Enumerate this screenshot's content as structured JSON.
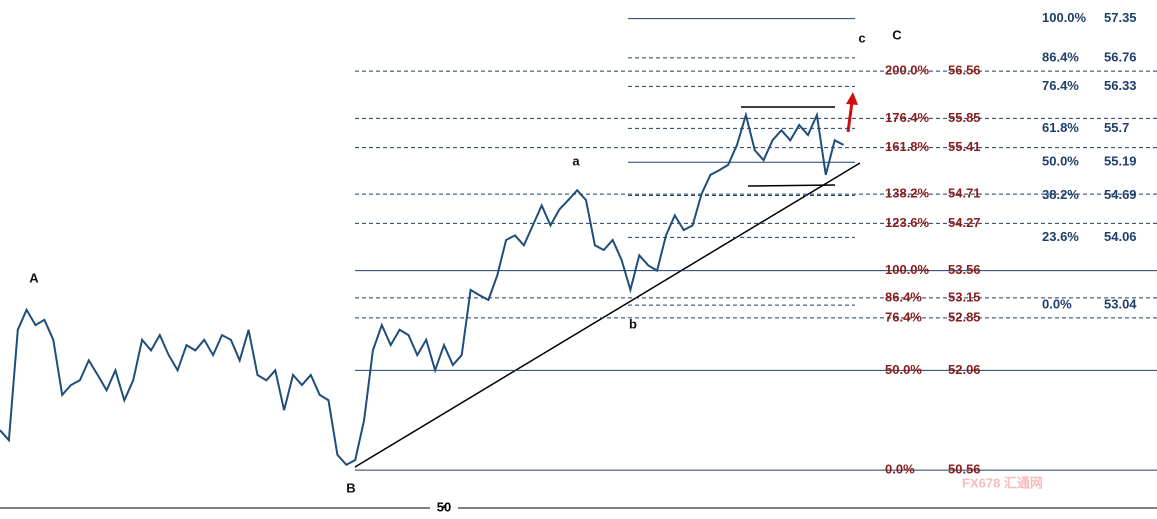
{
  "chart_data": {
    "type": "line",
    "x": [
      0,
      1,
      2,
      3,
      4,
      5,
      6,
      7,
      8,
      9,
      10,
      11,
      12,
      13,
      14,
      15,
      16,
      17,
      18,
      19,
      20,
      21,
      22,
      23,
      24,
      25,
      26,
      27,
      28,
      29,
      30,
      31,
      32,
      33,
      34,
      35,
      36,
      37,
      38,
      39,
      40,
      41,
      42,
      43,
      44,
      45,
      46,
      47,
      48,
      49,
      50,
      51,
      52,
      53,
      54,
      55,
      56,
      57,
      58,
      59,
      60,
      61,
      62,
      63,
      64,
      65,
      66,
      67,
      68,
      69,
      70,
      71,
      72,
      73,
      74,
      75,
      76,
      77,
      78,
      79,
      80,
      81,
      82,
      83,
      84,
      85,
      86,
      87,
      88,
      89,
      90,
      91,
      92,
      93,
      94,
      95
    ],
    "series": [
      {
        "color": "#1f4e79",
        "values": [
          51.16,
          51.01,
          52.67,
          52.97,
          52.74,
          52.82,
          52.52,
          51.69,
          51.84,
          51.91,
          52.21,
          51.99,
          51.76,
          52.06,
          51.61,
          51.91,
          52.52,
          52.36,
          52.59,
          52.29,
          52.06,
          52.44,
          52.36,
          52.52,
          52.29,
          52.59,
          52.52,
          52.21,
          52.67,
          51.99,
          51.91,
          52.06,
          51.46,
          51.99,
          51.84,
          51.99,
          51.69,
          51.61,
          50.79,
          50.64,
          50.71,
          51.31,
          52.36,
          52.74,
          52.44,
          52.67,
          52.59,
          52.29,
          52.52,
          52.06,
          52.44,
          52.14,
          52.29,
          53.27,
          53.19,
          53.12,
          53.49,
          54.02,
          54.09,
          53.94,
          54.24,
          54.54,
          54.24,
          54.48,
          54.62,
          54.77,
          54.62,
          53.94,
          53.87,
          54.02,
          53.72,
          53.27,
          53.79,
          53.64,
          53.56,
          54.09,
          54.39,
          54.17,
          54.24,
          54.71,
          55.0,
          55.07,
          55.15,
          55.45,
          55.9,
          55.37,
          55.22,
          55.52,
          55.67,
          55.52,
          55.75,
          55.6,
          55.9,
          55.0,
          55.52,
          55.45
        ]
      }
    ],
    "xlim": [
      0,
      130.3
    ],
    "xticks": [
      50
    ],
    "ylim": [
      50.11,
      57.63
    ],
    "fib_left": {
      "color": "#8b1c1c",
      "levels": [
        {
          "label": "200.0%",
          "value": 56.56,
          "dashed": true
        },
        {
          "label": "176.4%",
          "value": 55.85,
          "dashed": true
        },
        {
          "label": "161.8%",
          "value": 55.41,
          "dashed": true
        },
        {
          "label": "138.2%",
          "value": 54.71,
          "dashed": true
        },
        {
          "label": "123.6%",
          "value": 54.27,
          "dashed": true
        },
        {
          "label": "100.0%",
          "value": 53.56,
          "dashed": false
        },
        {
          "label": "86.4%",
          "value": 53.15,
          "dashed": true
        },
        {
          "label": "76.4%",
          "value": 52.85,
          "dashed": true
        },
        {
          "label": "50.0%",
          "value": 52.06,
          "dashed": false
        },
        {
          "label": "0.0%",
          "value": 50.56,
          "dashed": false
        }
      ]
    },
    "fib_right": {
      "color": "#1f3f6b",
      "levels": [
        {
          "label": "100.0%",
          "value": 57.35,
          "dashed": false
        },
        {
          "label": "86.4%",
          "value": 56.76,
          "dashed": true
        },
        {
          "label": "76.4%",
          "value": 56.33,
          "dashed": true
        },
        {
          "label": "61.8%",
          "value": 55.7,
          "dashed": true
        },
        {
          "label": "50.0%",
          "value": 55.19,
          "dashed": false
        },
        {
          "label": "38.2%",
          "value": 54.69,
          "dashed": true
        },
        {
          "label": "23.6%",
          "value": 54.06,
          "dashed": true
        },
        {
          "label": "0.0%",
          "value": 53.04,
          "dashed": true
        }
      ]
    },
    "annotations": [
      "A",
      "B",
      "a",
      "b",
      "c",
      "C"
    ],
    "watermark": "FX678 汇通网"
  }
}
